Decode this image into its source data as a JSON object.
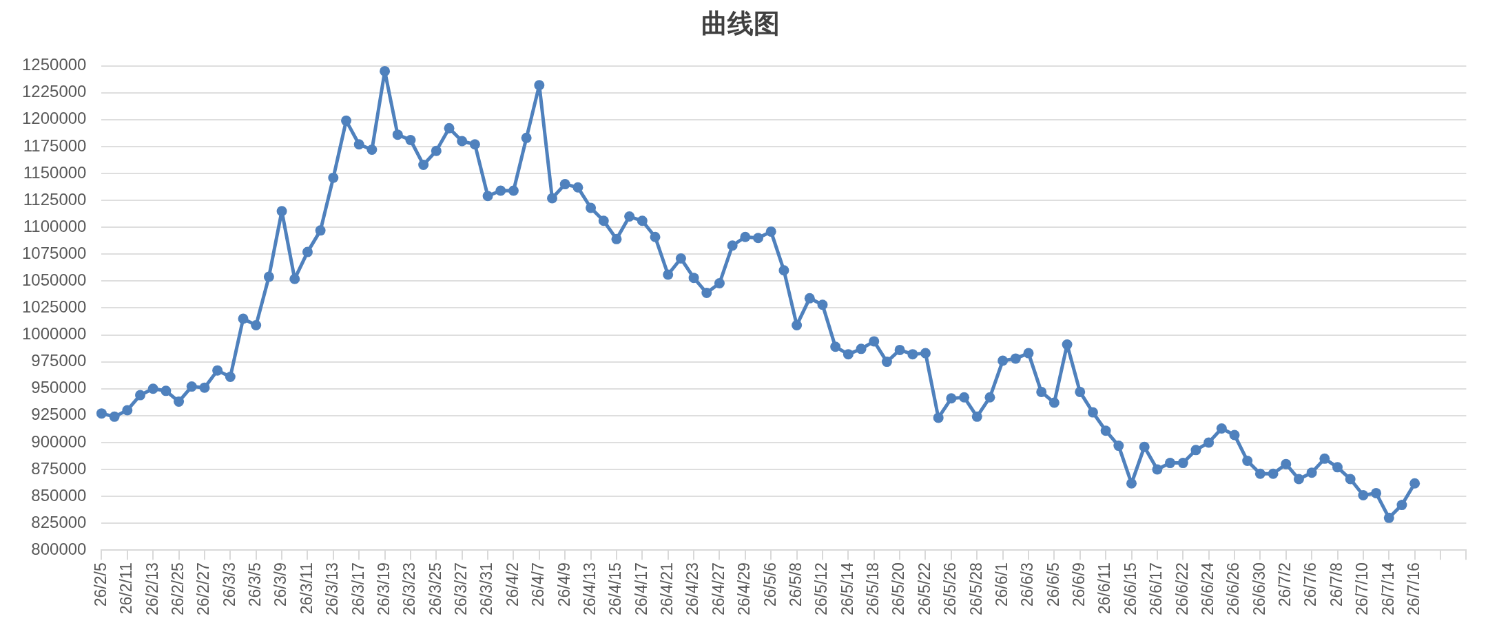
{
  "chart_data": {
    "type": "line",
    "title": "曲线图",
    "categories": [
      "26/2/5",
      null,
      "26/2/11",
      null,
      "26/2/13",
      null,
      "26/2/25",
      null,
      "26/2/27",
      null,
      "26/3/3",
      null,
      "26/3/5",
      null,
      "26/3/9",
      null,
      "26/3/11",
      null,
      "26/3/13",
      null,
      "26/3/17",
      null,
      "26/3/19",
      null,
      "26/3/23",
      null,
      "26/3/25",
      null,
      "26/3/27",
      null,
      "26/3/31",
      null,
      "26/4/2",
      null,
      "26/4/7",
      null,
      "26/4/9",
      null,
      "26/4/13",
      null,
      "26/4/15",
      null,
      "26/4/17",
      null,
      "26/4/21",
      null,
      "26/4/23",
      null,
      "26/4/27",
      null,
      "26/4/29",
      null,
      "26/5/6",
      null,
      "26/5/8",
      null,
      "26/5/12",
      null,
      "26/5/14",
      null,
      "26/5/18",
      null,
      "26/5/20",
      null,
      "26/5/22",
      null,
      "26/5/26",
      null,
      "26/5/28",
      null,
      "26/6/1",
      null,
      "26/6/3",
      null,
      "26/6/5",
      null,
      "26/6/9",
      null,
      "26/6/11",
      null,
      "26/6/15",
      null,
      "26/6/17",
      null,
      "26/6/22",
      null,
      "26/6/24",
      null,
      "26/6/26",
      null,
      "26/6/30",
      null,
      "26/7/2",
      null,
      "26/7/6",
      null,
      "26/7/8",
      null,
      "26/7/10",
      null,
      "26/7/14",
      null,
      "26/7/16",
      null,
      null,
      null,
      null
    ],
    "values": [
      927000,
      924000,
      930000,
      944000,
      950000,
      948000,
      938000,
      952000,
      951000,
      967000,
      961000,
      1015000,
      1009000,
      1054000,
      1115000,
      1052000,
      1077000,
      1097000,
      1146000,
      1199000,
      1177000,
      1172000,
      1245000,
      1186000,
      1181000,
      1158000,
      1171000,
      1192000,
      1180000,
      1177000,
      1129000,
      1134000,
      1134000,
      1183000,
      1232000,
      1127000,
      1140000,
      1137000,
      1118000,
      1106000,
      1089000,
      1110000,
      1106000,
      1091000,
      1056000,
      1071000,
      1053000,
      1039000,
      1048000,
      1083000,
      1091000,
      1090000,
      1096000,
      1060000,
      1009000,
      1034000,
      1028000,
      989000,
      982000,
      987000,
      994000,
      975000,
      986000,
      982000,
      983000,
      923000,
      941000,
      942000,
      924000,
      942000,
      976000,
      978000,
      983000,
      947000,
      937000,
      991000,
      947000,
      928000,
      911000,
      897000,
      862000,
      896000,
      875000,
      881000,
      881000,
      893000,
      900000,
      913000,
      907000,
      883000,
      871000,
      871000,
      880000,
      866000,
      872000,
      885000,
      877000,
      866000,
      851000,
      853000,
      830000,
      842000,
      862000,
      null,
      null,
      null,
      null
    ],
    "color": "#4f81bd",
    "marker": "circle",
    "line_style": "solid",
    "grid": "y",
    "ylim": [
      800000,
      1250000
    ],
    "yticks": [
      800000,
      825000,
      850000,
      875000,
      900000,
      925000,
      950000,
      975000,
      1000000,
      1025000,
      1050000,
      1075000,
      1100000,
      1125000,
      1150000,
      1175000,
      1200000,
      1225000,
      1250000
    ]
  }
}
